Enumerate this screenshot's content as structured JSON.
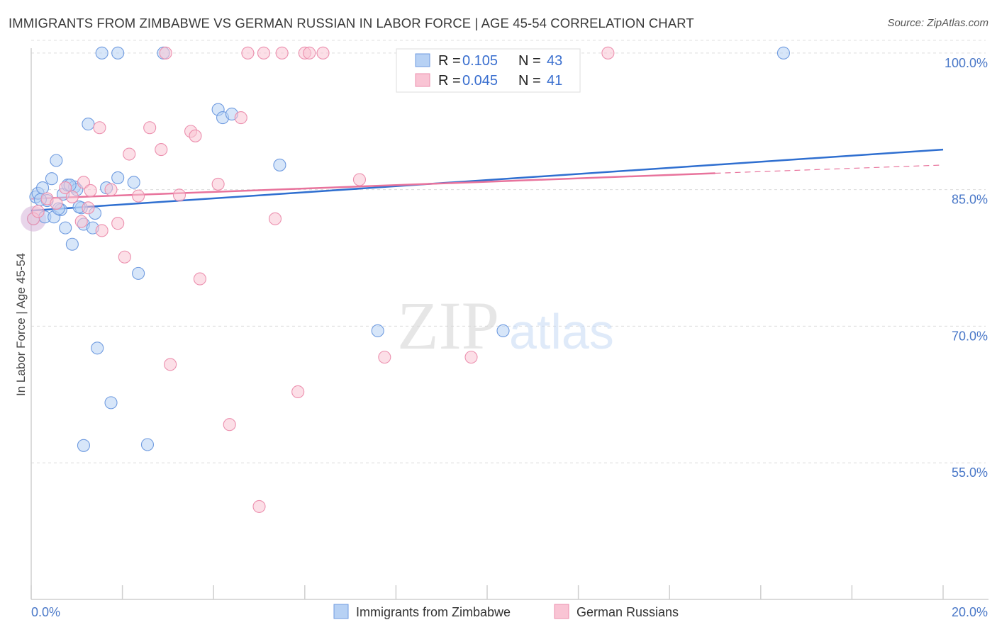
{
  "title": "IMMIGRANTS FROM ZIMBABWE VS GERMAN RUSSIAN IN LABOR FORCE | AGE 45-54 CORRELATION CHART",
  "source": "Source: ZipAtlas.com",
  "watermark": {
    "zip": "ZIP",
    "atlas": "atlas"
  },
  "colors": {
    "blue_fill": "#b7d1f4",
    "blue_stroke": "#6f9be0",
    "blue_line": "#2f6fd0",
    "pink_fill": "#f9c4d4",
    "pink_stroke": "#ec8fae",
    "pink_line": "#e8739c",
    "axis_text": "#4a78c8",
    "grid": "#dcdcdc"
  },
  "legend": {
    "rows": [
      {
        "series": "blue",
        "r_label": "R =",
        "r_value": "0.105",
        "n_label": "N =",
        "n_value": "43"
      },
      {
        "series": "pink",
        "r_label": "R =",
        "r_value": "0.045",
        "n_label": "N =",
        "n_value": "41"
      }
    ]
  },
  "chart_data": {
    "type": "scatter",
    "title": "IMMIGRANTS FROM ZIMBABWE VS GERMAN RUSSIAN IN LABOR FORCE | AGE 45-54 CORRELATION CHART",
    "xlabel": "",
    "ylabel": "In Labor Force | Age 45-54",
    "xlim": [
      0,
      20
    ],
    "ylim": [
      40,
      101
    ],
    "x_tick_labels": [
      "0.0%",
      "20.0%"
    ],
    "y_ticks": [
      55,
      70,
      85,
      100
    ],
    "y_tick_labels": [
      "55.0%",
      "70.0%",
      "85.0%",
      "100.0%"
    ],
    "legend_position": "top-center",
    "series": [
      {
        "name": "Immigrants from Zimbabwe",
        "color": "blue",
        "points": [
          [
            0.05,
            81.8
          ],
          [
            0.1,
            84.2
          ],
          [
            0.15,
            84.6
          ],
          [
            0.25,
            85.2
          ],
          [
            0.3,
            82.0
          ],
          [
            0.35,
            83.8
          ],
          [
            0.45,
            86.2
          ],
          [
            0.5,
            82.0
          ],
          [
            0.55,
            88.2
          ],
          [
            0.65,
            82.8
          ],
          [
            0.7,
            84.5
          ],
          [
            0.75,
            80.8
          ],
          [
            0.8,
            85.5
          ],
          [
            0.9,
            79.0
          ],
          [
            0.95,
            85.3
          ],
          [
            1.0,
            85.0
          ],
          [
            1.1,
            83.0
          ],
          [
            1.15,
            81.2
          ],
          [
            1.25,
            92.2
          ],
          [
            1.35,
            80.8
          ],
          [
            1.4,
            82.4
          ],
          [
            1.45,
            67.6
          ],
          [
            1.55,
            100.0
          ],
          [
            1.65,
            85.2
          ],
          [
            1.75,
            61.6
          ],
          [
            1.9,
            100.0
          ],
          [
            1.9,
            86.3
          ],
          [
            2.25,
            85.8
          ],
          [
            2.35,
            75.8
          ],
          [
            2.55,
            57.0
          ],
          [
            2.9,
            100.0
          ],
          [
            4.1,
            93.8
          ],
          [
            4.2,
            92.9
          ],
          [
            4.4,
            93.3
          ],
          [
            5.45,
            87.7
          ],
          [
            7.6,
            69.5
          ],
          [
            10.35,
            69.5
          ],
          [
            16.5,
            100.0
          ],
          [
            1.15,
            56.9
          ],
          [
            0.2,
            83.9
          ],
          [
            0.6,
            82.9
          ],
          [
            0.85,
            85.5
          ],
          [
            1.05,
            83.1
          ]
        ]
      },
      {
        "name": "German Russians",
        "color": "pink",
        "points": [
          [
            0.05,
            81.8
          ],
          [
            0.15,
            82.6
          ],
          [
            0.35,
            84.0
          ],
          [
            0.55,
            83.5
          ],
          [
            0.75,
            85.2
          ],
          [
            0.9,
            84.2
          ],
          [
            1.1,
            81.5
          ],
          [
            1.15,
            85.8
          ],
          [
            1.25,
            83.0
          ],
          [
            1.3,
            84.9
          ],
          [
            1.5,
            91.8
          ],
          [
            1.55,
            80.5
          ],
          [
            1.75,
            85.0
          ],
          [
            1.9,
            81.3
          ],
          [
            2.05,
            77.6
          ],
          [
            2.15,
            88.9
          ],
          [
            2.35,
            84.3
          ],
          [
            2.6,
            91.8
          ],
          [
            2.85,
            89.4
          ],
          [
            2.95,
            100.0
          ],
          [
            3.05,
            65.8
          ],
          [
            3.25,
            84.4
          ],
          [
            3.5,
            91.4
          ],
          [
            3.6,
            90.9
          ],
          [
            3.7,
            75.2
          ],
          [
            4.1,
            85.6
          ],
          [
            4.35,
            59.2
          ],
          [
            4.6,
            92.9
          ],
          [
            4.75,
            100.0
          ],
          [
            5.0,
            50.2
          ],
          [
            5.1,
            100.0
          ],
          [
            5.35,
            81.8
          ],
          [
            5.5,
            100.0
          ],
          [
            5.85,
            62.8
          ],
          [
            6.0,
            100.0
          ],
          [
            6.1,
            100.0
          ],
          [
            6.4,
            100.0
          ],
          [
            7.2,
            86.1
          ],
          [
            7.75,
            66.6
          ],
          [
            9.65,
            66.6
          ],
          [
            12.65,
            100.0
          ]
        ]
      }
    ],
    "trend_lines": [
      {
        "series": "Immigrants from Zimbabwe",
        "x": [
          0,
          20
        ],
        "y": [
          82.7,
          89.4
        ]
      },
      {
        "series": "German Russians",
        "x": [
          0,
          15
        ],
        "y": [
          84.0,
          86.8
        ]
      },
      {
        "series": "German Russians (extrapolated)",
        "x": [
          15,
          20
        ],
        "y": [
          86.8,
          87.7
        ]
      }
    ]
  }
}
